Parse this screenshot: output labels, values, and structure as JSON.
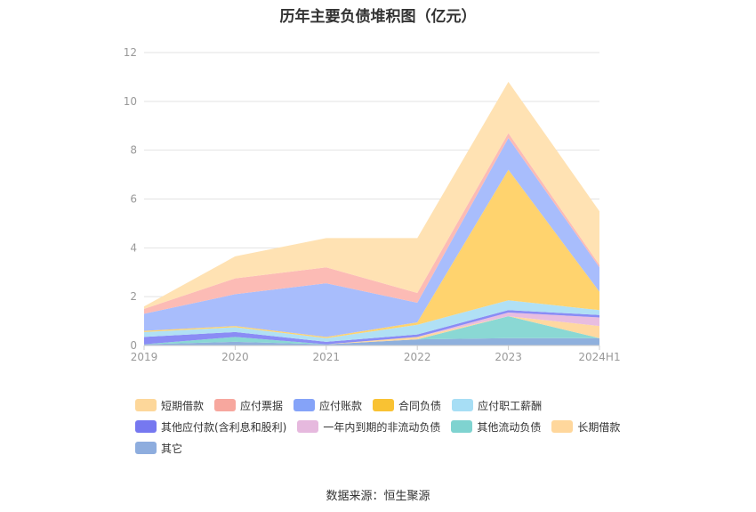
{
  "chart_data": {
    "type": "area",
    "stacked": true,
    "title": "历年主要负债堆积图（亿元）",
    "source": "数据来源：恒生聚源",
    "x": [
      "2019",
      "2020",
      "2021",
      "2022",
      "2023",
      "2024H1"
    ],
    "ylim": [
      0,
      12
    ],
    "yticks": [
      "0",
      "2",
      "4",
      "6",
      "8",
      "10",
      "12"
    ],
    "grid": true,
    "legend_position": "bottom",
    "series": [
      {
        "name": "其它",
        "color": "#8fb0dd",
        "values": [
          0.05,
          0.15,
          0.05,
          0.25,
          0.3,
          0.3
        ]
      },
      {
        "name": "其他流动负债",
        "color": "#8ad8d4",
        "values": [
          0.0,
          0.2,
          0.0,
          0.0,
          0.9,
          0.0
        ]
      },
      {
        "name": "长期借款",
        "color": "#ffd8a0",
        "values": [
          0.0,
          0.0,
          0.0,
          0.1,
          0.0,
          0.5
        ]
      },
      {
        "name": "一年内到期的非流动负债",
        "color": "#e8bde0",
        "values": [
          0.0,
          0.0,
          0.0,
          0.0,
          0.15,
          0.35
        ]
      },
      {
        "name": "其他应付款(含利息和股利)",
        "color": "#8a8cf5",
        "values": [
          0.3,
          0.2,
          0.1,
          0.1,
          0.1,
          0.1
        ]
      },
      {
        "name": "应付职工薪酬",
        "color": "#b0e0f5",
        "values": [
          0.2,
          0.2,
          0.15,
          0.4,
          0.4,
          0.2
        ]
      },
      {
        "name": "合同负债",
        "color": "#ffd36e",
        "values": [
          0.05,
          0.05,
          0.05,
          0.1,
          5.35,
          0.75
        ]
      },
      {
        "name": "应付账款",
        "color": "#a8bdfc",
        "values": [
          0.7,
          1.3,
          2.2,
          0.8,
          1.3,
          1.0
        ]
      },
      {
        "name": "应付票据",
        "color": "#fcbbb5",
        "values": [
          0.2,
          0.65,
          0.65,
          0.4,
          0.2,
          0.1
        ]
      },
      {
        "name": "短期借款",
        "color": "#ffe2b3",
        "values": [
          0.1,
          0.9,
          1.2,
          2.25,
          2.1,
          2.2
        ]
      }
    ],
    "legend": [
      {
        "name": "短期借款",
        "color": "#fdd79a"
      },
      {
        "name": "应付票据",
        "color": "#f7a79e"
      },
      {
        "name": "应付账款",
        "color": "#85a3f8"
      },
      {
        "name": "合同负债",
        "color": "#f9c233"
      },
      {
        "name": "应付职工薪酬",
        "color": "#a7def5"
      },
      {
        "name": "其他应付款(含利息和股利)",
        "color": "#7678f0"
      },
      {
        "name": "一年内到期的非流动负债",
        "color": "#e6b9de"
      },
      {
        "name": "其他流动负债",
        "color": "#7fd3d0"
      },
      {
        "name": "长期借款",
        "color": "#ffd79c"
      },
      {
        "name": "其它",
        "color": "#8eadde"
      }
    ]
  }
}
